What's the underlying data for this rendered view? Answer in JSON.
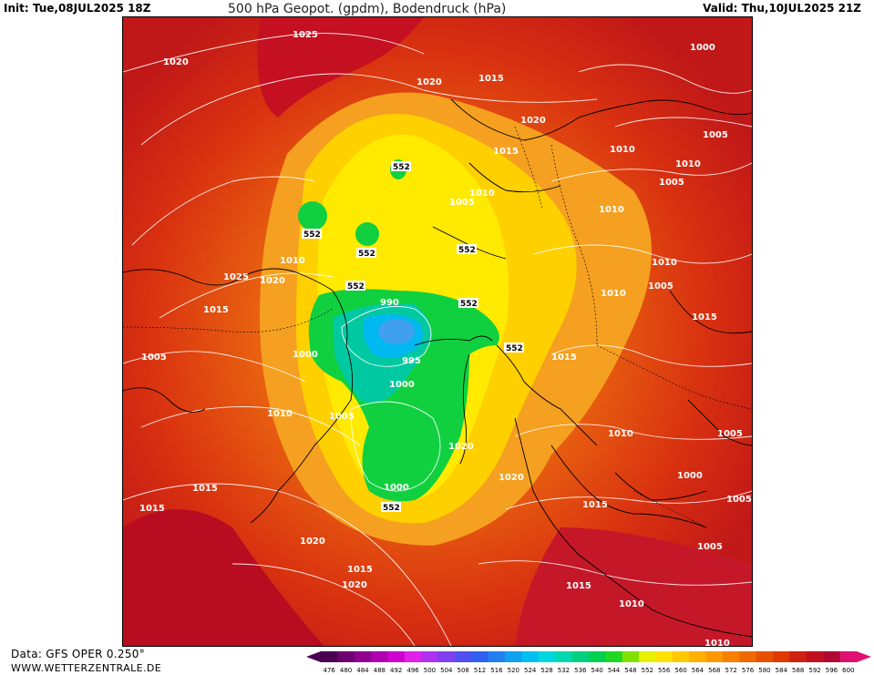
{
  "header": {
    "init": "Init: Tue,08JUL2025 18Z",
    "title": "500 hPa Geopot. (gpdm), Bodendruck (hPa)",
    "valid": "Valid: Thu,10JUL2025 21Z"
  },
  "footer": {
    "source": "Data: GFS OPER 0.250°",
    "site": "WWW.WETTERZENTRALE.DE"
  },
  "legend": {
    "ticks": [
      "476",
      "480",
      "484",
      "488",
      "492",
      "496",
      "500",
      "504",
      "508",
      "512",
      "516",
      "520",
      "524",
      "528",
      "532",
      "536",
      "540",
      "544",
      "548",
      "552",
      "556",
      "560",
      "564",
      "568",
      "572",
      "576",
      "580",
      "584",
      "588",
      "592",
      "596",
      "600"
    ],
    "colors": [
      "#4a0052",
      "#6e0070",
      "#8f0090",
      "#b000b0",
      "#d000d0",
      "#e020e8",
      "#b030f0",
      "#8040f0",
      "#5050f0",
      "#3060f0",
      "#2080f0",
      "#10a0f0",
      "#00c0f0",
      "#00d8e0",
      "#00d8b0",
      "#00d080",
      "#00d050",
      "#20d820",
      "#80e000",
      "#e8f000",
      "#ffe000",
      "#ffc800",
      "#ffb000",
      "#ff9800",
      "#f88000",
      "#f06800",
      "#e85000",
      "#e03800",
      "#d02010",
      "#c01020",
      "#b00830",
      "#e01070"
    ],
    "arrow_left_color": "#4a0052",
    "arrow_right_color": "#e01070"
  },
  "map": {
    "isobar_labels": [
      "1025",
      "1020",
      "1020",
      "1015",
      "1020",
      "1000",
      "1015",
      "1010",
      "1010",
      "1005",
      "1005",
      "1010",
      "1005",
      "1010",
      "1010",
      "1005",
      "1015",
      "1025",
      "1020",
      "1015",
      "1010",
      "1015",
      "1005",
      "1000",
      "1010",
      "990",
      "995",
      "1000",
      "1005",
      "1010",
      "1015",
      "1010",
      "1005",
      "1020",
      "1015",
      "1000",
      "1005",
      "1015",
      "1020",
      "1000",
      "1020",
      "1015",
      "1020",
      "1005",
      "1015",
      "1010",
      "1010"
    ],
    "geopotential_labels": [
      "552",
      "552",
      "552",
      "552",
      "552",
      "552",
      "552",
      "552"
    ]
  }
}
